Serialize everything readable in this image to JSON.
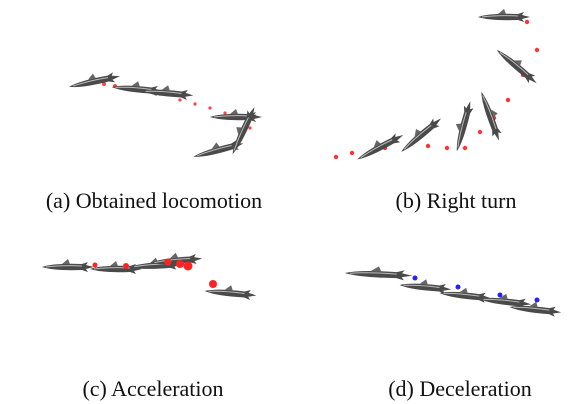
{
  "subfigures": [
    {
      "caption": "(a) Obtained locomotion"
    },
    {
      "caption": "(b) Right turn"
    },
    {
      "caption": "(c) Acceleration"
    },
    {
      "caption": "(d) Deceleration"
    }
  ]
}
